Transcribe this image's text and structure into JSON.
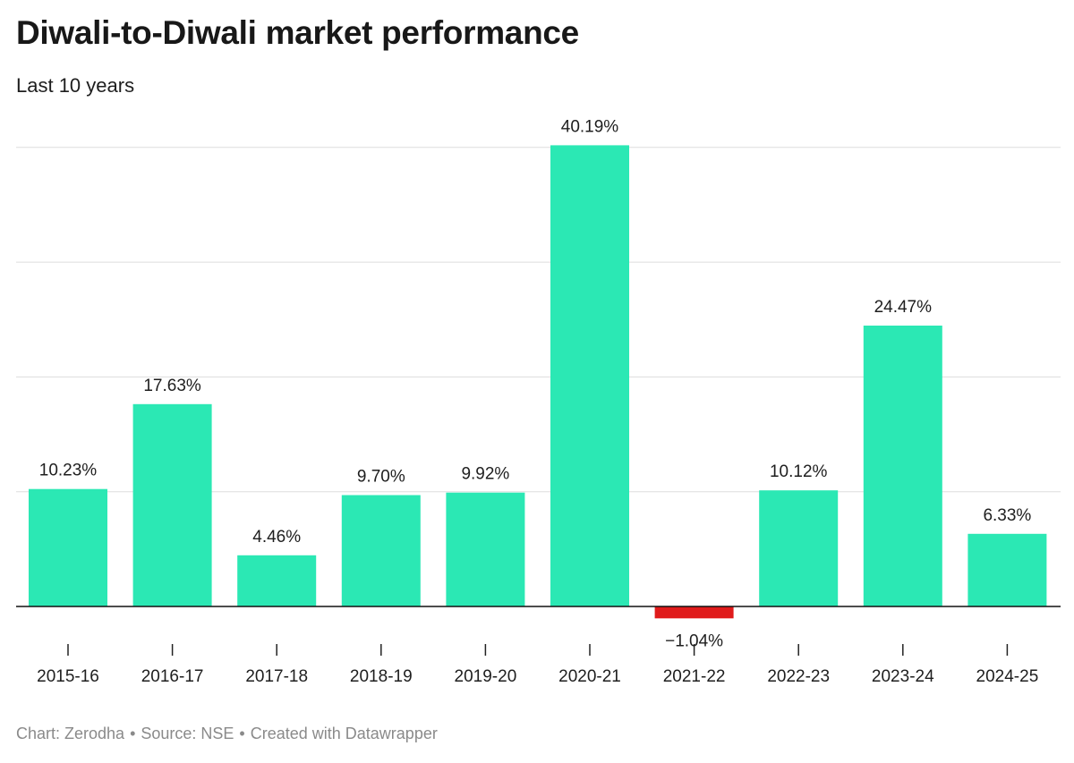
{
  "header": {
    "title": "Diwali-to-Diwali market performance",
    "subtitle": "Last 10 years"
  },
  "footer": {
    "chart_by": "Chart: Zerodha",
    "source": "Source: NSE",
    "created_with": "Created with Datawrapper",
    "separator": "•"
  },
  "colors": {
    "positive": "#2be8b4",
    "negative": "#e01b1b",
    "gridline": "#dddddd",
    "baseline": "#111111"
  },
  "chart_data": {
    "type": "bar",
    "title": "Diwali-to-Diwali market performance",
    "subtitle": "Last 10 years",
    "xlabel": "",
    "ylabel": "",
    "categories": [
      "2015-16",
      "2016-17",
      "2017-18",
      "2018-19",
      "2019-20",
      "2020-21",
      "2021-22",
      "2022-23",
      "2023-24",
      "2024-25"
    ],
    "values": [
      10.23,
      17.63,
      4.46,
      9.7,
      9.92,
      40.19,
      -1.04,
      10.12,
      24.47,
      6.33
    ],
    "value_labels": [
      "10.23%",
      "17.63%",
      "4.46%",
      "9.70%",
      "9.92%",
      "40.19%",
      "−1.04%",
      "10.12%",
      "24.47%",
      "6.33%"
    ],
    "ylim": [
      -1.04,
      40.19
    ],
    "gridlines": [
      10,
      20,
      30,
      40
    ],
    "grid": true,
    "legend": "none"
  }
}
